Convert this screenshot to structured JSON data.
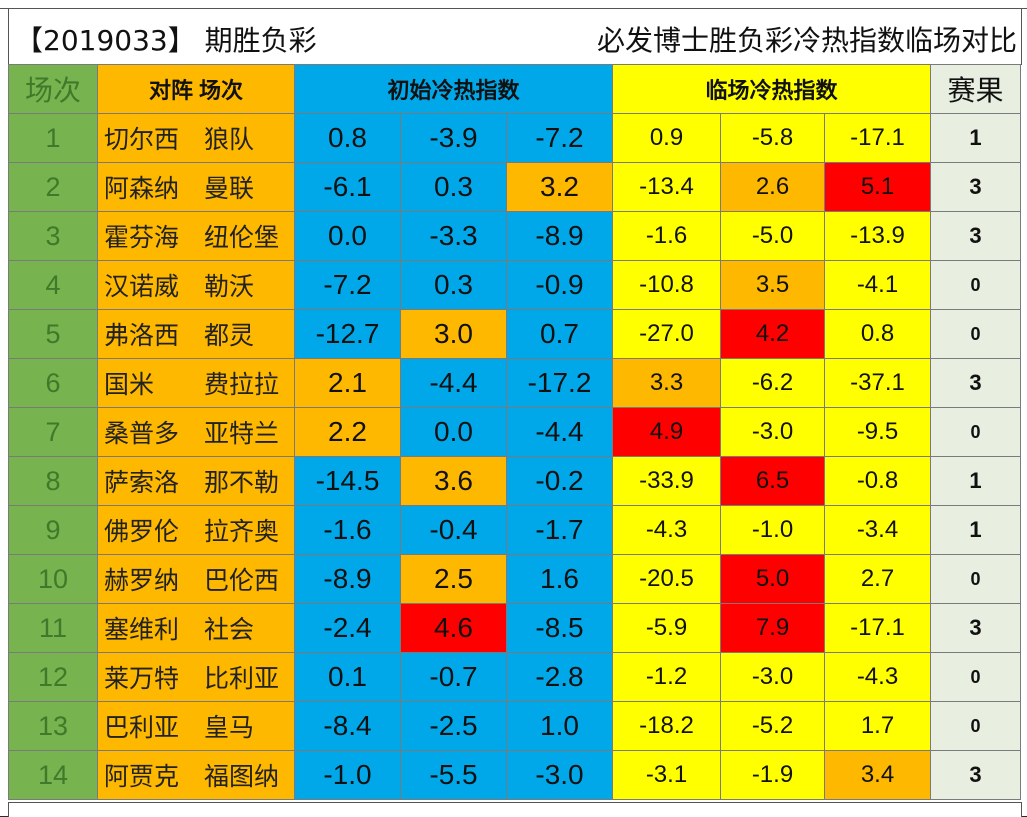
{
  "header": {
    "issue": "【2019033】 期胜负彩",
    "title": "必发博士胜负彩冷热指数临场对比"
  },
  "columns": {
    "round": "场次",
    "matchup": "对阵 场次",
    "initial": "初始冷热指数",
    "live": "临场冷热指数",
    "result": "赛果"
  },
  "colors": {
    "green": "#77b34e",
    "orange": "#ffb800",
    "blue": "#00a8ea",
    "yellow": "#ffff00",
    "red": "#ff0000",
    "result_bg": "#e8efe1"
  },
  "rows": [
    {
      "no": "1",
      "home": "切尔西",
      "away": "狼队",
      "init": [
        "0.8",
        "-3.9",
        "-7.2"
      ],
      "live": [
        "0.9",
        "-5.8",
        "-17.1"
      ],
      "result": "1",
      "init_hl": [
        "",
        "",
        ""
      ],
      "live_hl": [
        "",
        "",
        ""
      ]
    },
    {
      "no": "2",
      "home": "阿森纳",
      "away": "曼联",
      "init": [
        "-6.1",
        "0.3",
        "3.2"
      ],
      "live": [
        "-13.4",
        "2.6",
        "5.1"
      ],
      "result": "3",
      "init_hl": [
        "",
        "",
        "orange"
      ],
      "live_hl": [
        "",
        "orange",
        "red"
      ]
    },
    {
      "no": "3",
      "home": "霍芬海",
      "away": "纽伦堡",
      "init": [
        "0.0",
        "-3.3",
        "-8.9"
      ],
      "live": [
        "-1.6",
        "-5.0",
        "-13.9"
      ],
      "result": "3",
      "init_hl": [
        "",
        "",
        ""
      ],
      "live_hl": [
        "",
        "",
        ""
      ]
    },
    {
      "no": "4",
      "home": "汉诺威",
      "away": "勒沃",
      "init": [
        "-7.2",
        "0.3",
        "-0.9"
      ],
      "live": [
        "-10.8",
        "3.5",
        "-4.1"
      ],
      "result": "0",
      "init_hl": [
        "",
        "",
        ""
      ],
      "live_hl": [
        "",
        "orange",
        ""
      ]
    },
    {
      "no": "5",
      "home": "弗洛西",
      "away": "都灵",
      "init": [
        "-12.7",
        "3.0",
        "0.7"
      ],
      "live": [
        "-27.0",
        "4.2",
        "0.8"
      ],
      "result": "0",
      "init_hl": [
        "",
        "orange",
        ""
      ],
      "live_hl": [
        "",
        "red",
        ""
      ]
    },
    {
      "no": "6",
      "home": "国米",
      "away": "费拉拉",
      "init": [
        "2.1",
        "-4.4",
        "-17.2"
      ],
      "live": [
        "3.3",
        "-6.2",
        "-37.1"
      ],
      "result": "3",
      "init_hl": [
        "orange",
        "",
        ""
      ],
      "live_hl": [
        "orange",
        "",
        ""
      ]
    },
    {
      "no": "7",
      "home": "桑普多",
      "away": "亚特兰",
      "init": [
        "2.2",
        "0.0",
        "-4.4"
      ],
      "live": [
        "4.9",
        "-3.0",
        "-9.5"
      ],
      "result": "0",
      "init_hl": [
        "orange",
        "",
        ""
      ],
      "live_hl": [
        "red",
        "",
        ""
      ]
    },
    {
      "no": "8",
      "home": "萨索洛",
      "away": "那不勒",
      "init": [
        "-14.5",
        "3.6",
        "-0.2"
      ],
      "live": [
        "-33.9",
        "6.5",
        "-0.8"
      ],
      "result": "1",
      "init_hl": [
        "",
        "orange",
        ""
      ],
      "live_hl": [
        "",
        "red",
        ""
      ]
    },
    {
      "no": "9",
      "home": "佛罗伦",
      "away": "拉齐奥",
      "init": [
        "-1.6",
        "-0.4",
        "-1.7"
      ],
      "live": [
        "-4.3",
        "-1.0",
        "-3.4"
      ],
      "result": "1",
      "init_hl": [
        "",
        "",
        ""
      ],
      "live_hl": [
        "",
        "",
        ""
      ]
    },
    {
      "no": "10",
      "home": "赫罗纳",
      "away": "巴伦西",
      "init": [
        "-8.9",
        "2.5",
        "1.6"
      ],
      "live": [
        "-20.5",
        "5.0",
        "2.7"
      ],
      "result": "0",
      "init_hl": [
        "",
        "orange",
        ""
      ],
      "live_hl": [
        "",
        "red",
        ""
      ]
    },
    {
      "no": "11",
      "home": "塞维利",
      "away": "社会",
      "init": [
        "-2.4",
        "4.6",
        "-8.5"
      ],
      "live": [
        "-5.9",
        "7.9",
        "-17.1"
      ],
      "result": "3",
      "init_hl": [
        "",
        "red",
        ""
      ],
      "live_hl": [
        "",
        "red",
        ""
      ]
    },
    {
      "no": "12",
      "home": "莱万特",
      "away": "比利亚",
      "init": [
        "0.1",
        "-0.7",
        "-2.8"
      ],
      "live": [
        "-1.2",
        "-3.0",
        "-4.3"
      ],
      "result": "0",
      "init_hl": [
        "",
        "",
        ""
      ],
      "live_hl": [
        "",
        "",
        ""
      ]
    },
    {
      "no": "13",
      "home": "巴利亚",
      "away": "皇马",
      "init": [
        "-8.4",
        "-2.5",
        "1.0"
      ],
      "live": [
        "-18.2",
        "-5.2",
        "1.7"
      ],
      "result": "0",
      "init_hl": [
        "",
        "",
        ""
      ],
      "live_hl": [
        "",
        "",
        ""
      ]
    },
    {
      "no": "14",
      "home": "阿贾克",
      "away": "福图纳",
      "init": [
        "-1.0",
        "-5.5",
        "-3.0"
      ],
      "live": [
        "-3.1",
        "-1.9",
        "3.4"
      ],
      "result": "3",
      "init_hl": [
        "",
        "",
        ""
      ],
      "live_hl": [
        "",
        "",
        "orange"
      ]
    }
  ]
}
